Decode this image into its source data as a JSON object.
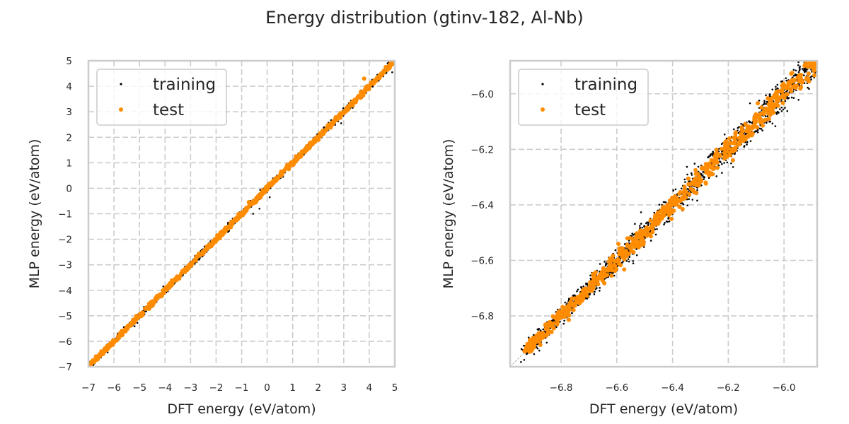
{
  "chart_data": {
    "suptitle": "Energy distribution (gtinv-182, Al-Nb)",
    "panels": [
      {
        "id": "full-range",
        "type": "scatter",
        "xlabel": "DFT energy (eV/atom)",
        "ylabel": "MLP energy (eV/atom)",
        "xlim": [
          -7,
          5
        ],
        "ylim": [
          -7,
          5
        ],
        "xticks": [
          -7,
          -6,
          -5,
          -4,
          -3,
          -2,
          -1,
          0,
          1,
          2,
          3,
          4,
          5
        ],
        "yticks": [
          -7,
          -6,
          -5,
          -4,
          -3,
          -2,
          -1,
          0,
          1,
          2,
          3,
          4,
          5
        ],
        "xtick_labels": [
          "−7",
          "−6",
          "−5",
          "−4",
          "−3",
          "−2",
          "−1",
          "0",
          "1",
          "2",
          "3",
          "4",
          "5"
        ],
        "ytick_labels": [
          "−7",
          "−6",
          "−5",
          "−4",
          "−3",
          "−2",
          "−1",
          "0",
          "1",
          "2",
          "3",
          "4",
          "5"
        ],
        "grid": true,
        "legend_position": "upper-left",
        "diagonal_reference": true,
        "series": [
          {
            "name": "training",
            "color": "#000000",
            "marker_size": "small",
            "distribution": "dense along y=x from -6.95 to 4.95; small outliers near x=-0.5 to 0.0 (MLP ~0.1-0.3 below), near x=1.9 to 3.2 and x=4.2 to 5",
            "segments": [
              [
                -6.95,
                4.95
              ]
            ],
            "scatter_sd": 0.06,
            "count_estimate": 1500,
            "outliers": [
              {
                "x": 0.1,
                "y": -0.35
              },
              {
                "x": -0.3,
                "y": -0.8
              },
              {
                "x": -0.55,
                "y": -1.0
              },
              {
                "x": 2.9,
                "y": 2.55
              },
              {
                "x": 4.9,
                "y": 4.55
              }
            ]
          },
          {
            "name": "test",
            "color": "#ff8c00",
            "marker_size": "medium",
            "distribution": "dense along y=x from -6.95 to 4.95",
            "segments": [
              [
                -6.95,
                4.95
              ]
            ],
            "scatter_sd": 0.04,
            "count_estimate": 800,
            "outliers": [
              {
                "x": 3.8,
                "y": 4.3
              },
              {
                "x": 0.85,
                "y": 0.75
              }
            ]
          }
        ]
      },
      {
        "id": "zoomed-range",
        "type": "scatter",
        "xlabel": "DFT energy (eV/atom)",
        "ylabel": "MLP energy (eV/atom)",
        "xlim": [
          -6.983,
          -5.881
        ],
        "ylim": [
          -6.983,
          -5.881
        ],
        "xticks": [
          -6.8,
          -6.6,
          -6.4,
          -6.2,
          -6.0
        ],
        "yticks": [
          -6.8,
          -6.6,
          -6.4,
          -6.2,
          -6.0
        ],
        "xtick_labels": [
          "−6.8",
          "−6.6",
          "−6.4",
          "−6.2",
          "−6.0"
        ],
        "ytick_labels": [
          "−6.8",
          "−6.6",
          "−6.4",
          "−6.2",
          "−6.0"
        ],
        "grid": true,
        "legend_position": "upper-left",
        "diagonal_reference": true,
        "series": [
          {
            "name": "training",
            "color": "#000000",
            "marker_size": "small",
            "distribution": "band along y=x from -6.93 to -5.88, width growing toward higher energy",
            "segments": [
              [
                -6.93,
                -5.88
              ]
            ],
            "scatter_sd": 0.018,
            "count_estimate": 1500
          },
          {
            "name": "test",
            "color": "#ff8c00",
            "marker_size": "medium",
            "distribution": "band along y=x from -6.93 to -5.88",
            "segments": [
              [
                -6.93,
                -5.88
              ]
            ],
            "scatter_sd": 0.014,
            "count_estimate": 700
          }
        ]
      }
    ],
    "legend": [
      {
        "label": "training",
        "color": "#000000"
      },
      {
        "label": "test",
        "color": "#ff8c00"
      }
    ]
  }
}
